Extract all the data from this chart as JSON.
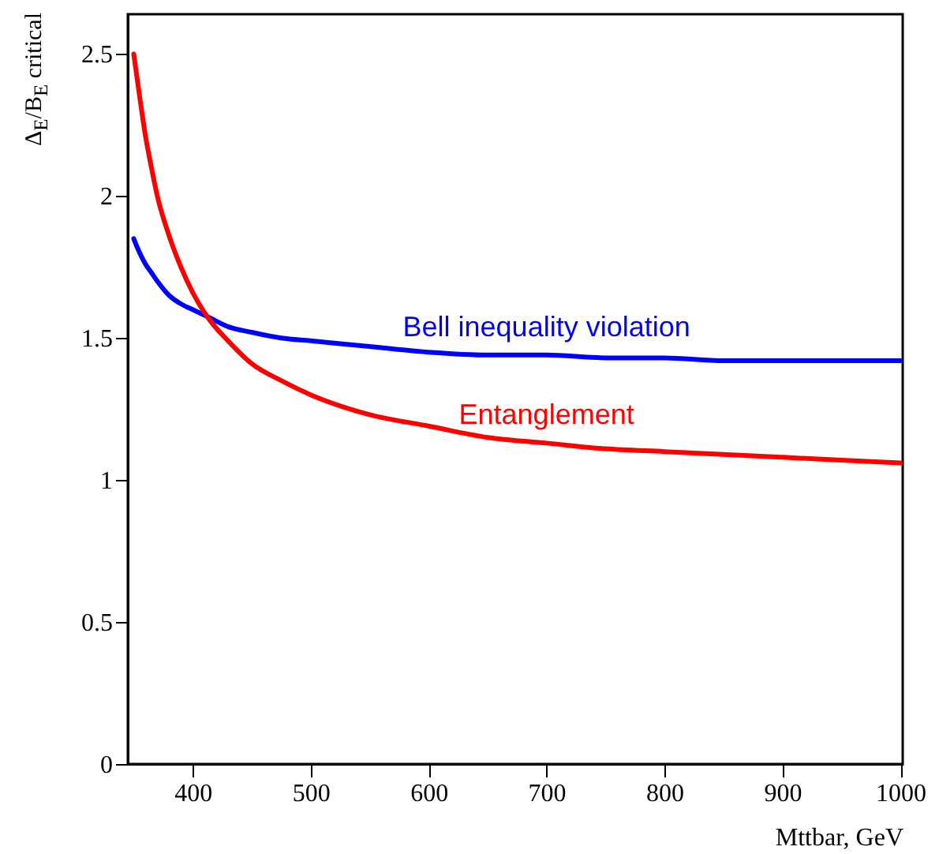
{
  "chart_data": {
    "type": "line",
    "xlabel": "Mttbar, GeV",
    "ylabel": "Δ$_{E}$/B$_{E}$ critical",
    "x": [
      350,
      355,
      360,
      365,
      370,
      380,
      390,
      400,
      415,
      430,
      450,
      475,
      500,
      550,
      600,
      650,
      700,
      750,
      800,
      850,
      900,
      950,
      1000
    ],
    "series": [
      {
        "name": "Bell inequality violation",
        "color": "#0000ff",
        "values": [
          1.85,
          1.8,
          1.76,
          1.73,
          1.7,
          1.65,
          1.62,
          1.6,
          1.57,
          1.54,
          1.52,
          1.5,
          1.49,
          1.47,
          1.45,
          1.44,
          1.44,
          1.43,
          1.43,
          1.42,
          1.42,
          1.42,
          1.42
        ]
      },
      {
        "name": "Entanglement",
        "color": "#ff0000",
        "values": [
          2.5,
          2.35,
          2.21,
          2.1,
          2.0,
          1.86,
          1.75,
          1.66,
          1.56,
          1.49,
          1.41,
          1.35,
          1.3,
          1.23,
          1.19,
          1.15,
          1.13,
          1.11,
          1.1,
          1.09,
          1.08,
          1.07,
          1.06
        ]
      }
    ],
    "xlim": [
      345,
      1002
    ],
    "ylim": [
      0,
      2.64
    ],
    "xticks": [
      400,
      500,
      600,
      700,
      800,
      900,
      1000
    ],
    "yticks": [
      0,
      0.5,
      1,
      1.5,
      2,
      2.5
    ],
    "grid": false,
    "marker": "none",
    "line_style": "solid"
  }
}
